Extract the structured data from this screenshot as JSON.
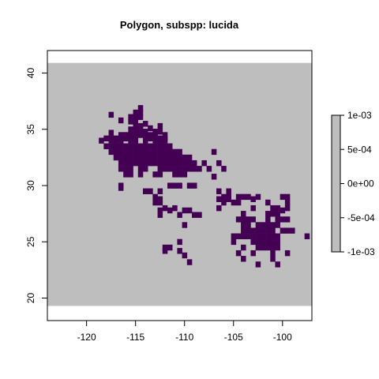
{
  "chart_data": {
    "type": "heatmap",
    "title": "Polygon, subspp: lucida",
    "xlabel": "",
    "ylabel": "",
    "xlim": [
      -124,
      -97
    ],
    "ylim": [
      18,
      42
    ],
    "x_ticks": [
      -120,
      -115,
      -110,
      -105,
      -100
    ],
    "y_ticks": [
      20,
      25,
      30,
      35,
      40
    ],
    "x_tick_labels": [
      "-120",
      "-115",
      "-110",
      "-105",
      "-100"
    ],
    "y_tick_labels": [
      "20",
      "25",
      "30",
      "35",
      "40"
    ],
    "raster_extent": {
      "xmin": -124,
      "xmax": -97,
      "ymin": 19.3,
      "ymax": 40.9
    },
    "cell_size": 0.5,
    "background_color": "#bebebe",
    "presence_color": "#440154",
    "legend": {
      "position": "right",
      "labels": [
        "1e-03",
        "5e-04",
        "0e+00",
        "-5e-04",
        "-1e-03"
      ],
      "values": [
        0.001,
        0.0005,
        0,
        -0.0005,
        -0.001
      ],
      "fill_color": "#bebebe"
    },
    "presence_cells": [
      [
        -114.5,
        36.9
      ],
      [
        -115,
        36.5
      ],
      [
        -114.5,
        36.5
      ],
      [
        -117.5,
        36.3
      ],
      [
        -115.5,
        36.1
      ],
      [
        -115,
        36.1
      ],
      [
        -114.5,
        36.1
      ],
      [
        -116.5,
        35.8
      ],
      [
        -115.5,
        35.7
      ],
      [
        -115,
        35.7
      ],
      [
        -114,
        35.5
      ],
      [
        -112.5,
        35.3
      ],
      [
        -115,
        35.3
      ],
      [
        -114.5,
        35.3
      ],
      [
        -113.5,
        35.1
      ],
      [
        -115.5,
        35
      ],
      [
        -115,
        35
      ],
      [
        -114.5,
        35
      ],
      [
        -114,
        34.8
      ],
      [
        -113,
        34.8
      ],
      [
        -112.5,
        34.8
      ],
      [
        -117.5,
        34.7
      ],
      [
        -116.5,
        34.5
      ],
      [
        -116,
        34.5
      ],
      [
        -115.5,
        34.5
      ],
      [
        -115,
        34.5
      ],
      [
        -114.5,
        34.5
      ],
      [
        -114,
        34.5
      ],
      [
        -113.5,
        34.5
      ],
      [
        -113,
        34.5
      ],
      [
        -112,
        34.5
      ],
      [
        -118,
        34.2
      ],
      [
        -117.5,
        34.2
      ],
      [
        -117,
        34.2
      ],
      [
        -116,
        34.2
      ],
      [
        -115.5,
        34.2
      ],
      [
        -115,
        34.2
      ],
      [
        -114,
        34.2
      ],
      [
        -113.5,
        34.2
      ],
      [
        -113,
        34.2
      ],
      [
        -112.5,
        34.2
      ],
      [
        -112,
        34.2
      ],
      [
        -118.5,
        34
      ],
      [
        -117.5,
        34
      ],
      [
        -117,
        34
      ],
      [
        -116.5,
        34
      ],
      [
        -115.5,
        34
      ],
      [
        -115,
        34
      ],
      [
        -114,
        34
      ],
      [
        -113,
        34
      ],
      [
        -112.5,
        34
      ],
      [
        -112,
        34
      ],
      [
        -118,
        33.5
      ],
      [
        -117.5,
        33.5
      ],
      [
        -117,
        33.5
      ],
      [
        -116.5,
        33.5
      ],
      [
        -116,
        33.5
      ],
      [
        -115.5,
        33.5
      ],
      [
        -115,
        33.5
      ],
      [
        -114.5,
        33.5
      ],
      [
        -114,
        33.5
      ],
      [
        -113.5,
        33.5
      ],
      [
        -113,
        33.5
      ],
      [
        -112.5,
        33.5
      ],
      [
        -112,
        33.5
      ],
      [
        -111.5,
        33.5
      ],
      [
        -117.5,
        33
      ],
      [
        -117,
        33
      ],
      [
        -116.5,
        33
      ],
      [
        -116,
        33
      ],
      [
        -115.5,
        33
      ],
      [
        -115,
        33
      ],
      [
        -114.5,
        33
      ],
      [
        -114,
        33
      ],
      [
        -113.5,
        33
      ],
      [
        -113,
        33
      ],
      [
        -112.5,
        33
      ],
      [
        -112,
        33
      ],
      [
        -111.5,
        33
      ],
      [
        -111,
        33
      ],
      [
        -110.5,
        33
      ],
      [
        -107,
        33
      ],
      [
        -117,
        32.5
      ],
      [
        -116.5,
        32.5
      ],
      [
        -116,
        32.5
      ],
      [
        -115.5,
        32.5
      ],
      [
        -115,
        32.5
      ],
      [
        -114.5,
        32.5
      ],
      [
        -114,
        32.5
      ],
      [
        -113.5,
        32.5
      ],
      [
        -113,
        32.5
      ],
      [
        -112.5,
        32.5
      ],
      [
        -112,
        32.5
      ],
      [
        -111.5,
        32.5
      ],
      [
        -111,
        32.5
      ],
      [
        -110.5,
        32.5
      ],
      [
        -110,
        32.5
      ],
      [
        -109.5,
        32.5
      ],
      [
        -116.5,
        32
      ],
      [
        -116,
        32
      ],
      [
        -115.5,
        32
      ],
      [
        -115,
        32
      ],
      [
        -114.5,
        32
      ],
      [
        -114,
        32
      ],
      [
        -113.5,
        32
      ],
      [
        -113,
        32
      ],
      [
        -112.5,
        32
      ],
      [
        -112,
        32
      ],
      [
        -111.5,
        32
      ],
      [
        -111,
        32
      ],
      [
        -110.5,
        32
      ],
      [
        -110,
        32
      ],
      [
        -109.5,
        32
      ],
      [
        -109,
        32
      ],
      [
        -108,
        32
      ],
      [
        -106.5,
        32
      ],
      [
        -116.5,
        31.5
      ],
      [
        -116,
        31.5
      ],
      [
        -115.5,
        31.5
      ],
      [
        -114.5,
        31.5
      ],
      [
        -114,
        31.5
      ],
      [
        -112.5,
        31.5
      ],
      [
        -112,
        31.5
      ],
      [
        -111.5,
        31.5
      ],
      [
        -111,
        31.5
      ],
      [
        -110.5,
        31.5
      ],
      [
        -110,
        31.5
      ],
      [
        -109.5,
        31.5
      ],
      [
        -109,
        31.5
      ],
      [
        -108.5,
        31.5
      ],
      [
        -107.5,
        31.5
      ],
      [
        -106,
        31.5
      ],
      [
        -116,
        31
      ],
      [
        -115.5,
        31
      ],
      [
        -114.5,
        31
      ],
      [
        -113,
        31
      ],
      [
        -112.5,
        31
      ],
      [
        -111,
        31
      ],
      [
        -110.5,
        31
      ],
      [
        -110,
        31
      ],
      [
        -107,
        30.8
      ],
      [
        -116.5,
        30
      ],
      [
        -111.5,
        30
      ],
      [
        -111,
        30
      ],
      [
        -110.5,
        30
      ],
      [
        -109.5,
        30
      ],
      [
        -109,
        30
      ],
      [
        -116.5,
        29.8
      ],
      [
        -114,
        29.5
      ],
      [
        -113.5,
        29.5
      ],
      [
        -112.5,
        29.5
      ],
      [
        -106.5,
        29.5
      ],
      [
        -105.5,
        29.5
      ],
      [
        -113,
        29
      ],
      [
        -106,
        29
      ],
      [
        -105.5,
        29
      ],
      [
        -104.5,
        29
      ],
      [
        -104,
        29
      ],
      [
        -103.5,
        29
      ],
      [
        -102.5,
        29
      ],
      [
        -112.5,
        28.8
      ],
      [
        -106.5,
        28.8
      ],
      [
        -105.5,
        28.8
      ],
      [
        -103,
        28.8
      ],
      [
        -100,
        29
      ],
      [
        -99.5,
        29
      ],
      [
        -113,
        28.5
      ],
      [
        -112.5,
        28.5
      ],
      [
        -106,
        28.5
      ],
      [
        -105,
        28.5
      ],
      [
        -104.5,
        28.5
      ],
      [
        -101.5,
        28.5
      ],
      [
        -99.5,
        28.5
      ],
      [
        -112,
        28
      ],
      [
        -111,
        28
      ],
      [
        -106.5,
        28
      ],
      [
        -103,
        28
      ],
      [
        -101,
        28
      ],
      [
        -100.5,
        28
      ],
      [
        -99.5,
        28
      ],
      [
        -112.5,
        27.8
      ],
      [
        -110,
        27.8
      ],
      [
        -109.5,
        27.8
      ],
      [
        -100,
        27.8
      ],
      [
        -111.5,
        27.8
      ],
      [
        -104,
        27.5
      ],
      [
        -101.5,
        27.5
      ],
      [
        -101,
        27.5
      ],
      [
        -100.5,
        27.5
      ],
      [
        -112.5,
        27.4
      ],
      [
        -110.5,
        27.4
      ],
      [
        -109,
        27.4
      ],
      [
        -108.5,
        27.4
      ],
      [
        -104.5,
        27
      ],
      [
        -104,
        27
      ],
      [
        -103.5,
        27
      ],
      [
        -103,
        27
      ],
      [
        -101.5,
        27
      ],
      [
        -100.5,
        27
      ],
      [
        -100,
        27
      ],
      [
        -99.5,
        27
      ],
      [
        -110,
        26.5
      ],
      [
        -104,
        26.5
      ],
      [
        -103.5,
        26.5
      ],
      [
        -102.5,
        26.5
      ],
      [
        -102,
        26.5
      ],
      [
        -101.5,
        26.5
      ],
      [
        -101,
        26.5
      ],
      [
        -100.5,
        26.5
      ],
      [
        -104,
        26
      ],
      [
        -103.5,
        26
      ],
      [
        -103,
        26
      ],
      [
        -102.5,
        26
      ],
      [
        -102,
        26
      ],
      [
        -101.5,
        26
      ],
      [
        -101,
        26
      ],
      [
        -100,
        26
      ],
      [
        -99.5,
        26
      ],
      [
        -99,
        26
      ],
      [
        -105,
        25.5
      ],
      [
        -104.5,
        25.5
      ],
      [
        -104,
        25.5
      ],
      [
        -103.5,
        25.5
      ],
      [
        -103,
        25.5
      ],
      [
        -102.5,
        25.5
      ],
      [
        -102,
        25.5
      ],
      [
        -101.5,
        25.5
      ],
      [
        -101,
        25.5
      ],
      [
        -100.5,
        25.5
      ],
      [
        -97.5,
        25.5
      ],
      [
        -110.5,
        25
      ],
      [
        -105,
        25
      ],
      [
        -103,
        25
      ],
      [
        -102.5,
        25
      ],
      [
        -102,
        25
      ],
      [
        -101.5,
        25
      ],
      [
        -101,
        25
      ],
      [
        -100.5,
        25
      ],
      [
        -112,
        24.5
      ],
      [
        -111.5,
        24.5
      ],
      [
        -104,
        24.5
      ],
      [
        -102.5,
        24.5
      ],
      [
        -102,
        24.5
      ],
      [
        -101.5,
        24.5
      ],
      [
        -101,
        24.5
      ],
      [
        -100.5,
        24.5
      ],
      [
        -112,
        24.2
      ],
      [
        -110.5,
        24.2
      ],
      [
        -104.5,
        24
      ],
      [
        -103,
        24
      ],
      [
        -101,
        24
      ],
      [
        -99.5,
        24
      ],
      [
        -110,
        23.8
      ],
      [
        -104,
        23.5
      ],
      [
        -101,
        23.5
      ],
      [
        -109.5,
        23.2
      ],
      [
        -102.5,
        23
      ],
      [
        -100.5,
        23
      ]
    ]
  }
}
